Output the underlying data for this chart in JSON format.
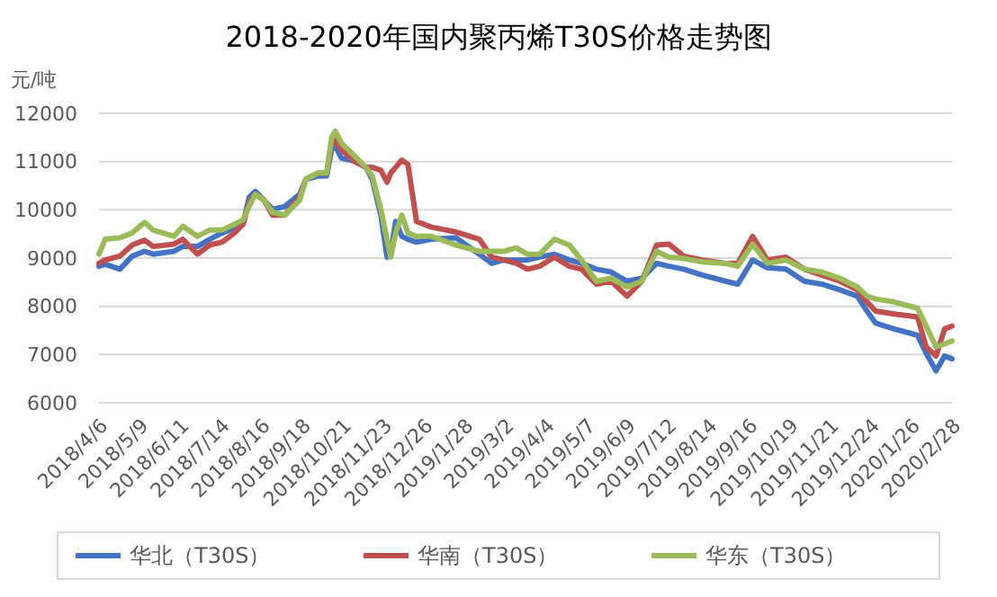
{
  "chart_data": {
    "type": "line",
    "title": "2018-2020年国内聚丙烯T30S价格走势图",
    "ylabel": "元/吨",
    "x": [
      "2018-04-06",
      "2018-04-11",
      "2018-04-23",
      "2018-05-03",
      "2018-05-13",
      "2018-05-20",
      "2018-06-06",
      "2018-06-13",
      "2018-06-25",
      "2018-07-05",
      "2018-07-15",
      "2018-07-25",
      "2018-08-01",
      "2018-08-06",
      "2018-08-11",
      "2018-08-18",
      "2018-08-25",
      "2018-09-04",
      "2018-09-16",
      "2018-09-21",
      "2018-10-01",
      "2018-10-08",
      "2018-10-12",
      "2018-10-15",
      "2018-10-20",
      "2018-10-30",
      "2018-11-09",
      "2018-11-14",
      "2018-11-21",
      "2018-11-26",
      "2018-11-29",
      "2018-12-03",
      "2018-12-08",
      "2018-12-13",
      "2018-12-20",
      "2019-01-01",
      "2019-01-21",
      "2019-02-09",
      "2019-02-19",
      "2019-03-01",
      "2019-03-11",
      "2019-03-20",
      "2019-03-30",
      "2019-04-11",
      "2019-04-23",
      "2019-05-03",
      "2019-05-15",
      "2019-05-27",
      "2019-06-09",
      "2019-06-21",
      "2019-07-03",
      "2019-07-13",
      "2019-07-25",
      "2019-08-09",
      "2019-08-28",
      "2019-09-07",
      "2019-09-19",
      "2019-10-01",
      "2019-10-16",
      "2019-10-31",
      "2019-11-14",
      "2019-11-29",
      "2019-12-13",
      "2019-12-21",
      "2019-12-28",
      "2020-01-12",
      "2020-01-31",
      "2020-02-07",
      "2020-02-15",
      "2020-02-22",
      "2020-02-28"
    ],
    "series": [
      {
        "name": "华北（T30S）",
        "color": "#4472c4",
        "values": [
          8830,
          8870,
          8770,
          9040,
          9140,
          9080,
          9140,
          9240,
          9240,
          9390,
          9520,
          9620,
          9700,
          10260,
          10380,
          10200,
          10010,
          10070,
          10320,
          10630,
          10700,
          10700,
          11250,
          11320,
          11070,
          11010,
          10880,
          10630,
          9890,
          9020,
          9080,
          9760,
          9450,
          9390,
          9330,
          9390,
          9420,
          9080,
          8890,
          8960,
          8960,
          8960,
          9020,
          9080,
          8960,
          8890,
          8770,
          8710,
          8520,
          8580,
          8890,
          8830,
          8770,
          8650,
          8520,
          8460,
          8960,
          8800,
          8770,
          8520,
          8460,
          8340,
          8210,
          7900,
          7650,
          7530,
          7400,
          7030,
          6660,
          6970,
          6910
        ]
      },
      {
        "name": "华南（T30S）",
        "color": "#c0504d",
        "values": [
          8890,
          8960,
          9040,
          9270,
          9370,
          9240,
          9290,
          9390,
          9080,
          9270,
          9330,
          9520,
          9700,
          10140,
          10320,
          10200,
          9890,
          9890,
          10260,
          10630,
          10760,
          10760,
          11380,
          11440,
          11250,
          11010,
          10880,
          10880,
          10820,
          10570,
          10760,
          10880,
          11030,
          10940,
          9760,
          9640,
          9540,
          9390,
          9020,
          8960,
          8890,
          8770,
          8830,
          9020,
          8830,
          8770,
          8460,
          8520,
          8210,
          8520,
          9270,
          9290,
          9040,
          8960,
          8890,
          8890,
          9450,
          8960,
          9020,
          8770,
          8650,
          8520,
          8340,
          8090,
          7900,
          7840,
          7780,
          7160,
          6970,
          7530,
          7590
        ]
      },
      {
        "name": "华东（T30S）",
        "color": "#9bbb59",
        "values": [
          9080,
          9390,
          9420,
          9520,
          9740,
          9580,
          9450,
          9660,
          9450,
          9580,
          9580,
          9700,
          9790,
          10070,
          10320,
          10200,
          9950,
          9890,
          10200,
          10630,
          10760,
          10760,
          11500,
          11630,
          11380,
          11130,
          10880,
          10700,
          10010,
          9390,
          9020,
          9520,
          9890,
          9520,
          9450,
          9450,
          9270,
          9140,
          9140,
          9140,
          9210,
          9080,
          9080,
          9390,
          9270,
          8960,
          8520,
          8580,
          8400,
          8520,
          9140,
          9020,
          8990,
          8920,
          8890,
          8830,
          9290,
          8890,
          8960,
          8770,
          8710,
          8580,
          8400,
          8210,
          8150,
          8090,
          7960,
          7590,
          7160,
          7220,
          7280
        ]
      }
    ],
    "xlim": [
      "2018-04-06",
      "2020-02-28"
    ],
    "xticks": [
      {
        "value": "2018-04-06",
        "label": "2018/4/6"
      },
      {
        "value": "2018-05-09",
        "label": "2018/5/9"
      },
      {
        "value": "2018-06-11",
        "label": "2018/6/11"
      },
      {
        "value": "2018-07-14",
        "label": "2018/7/14"
      },
      {
        "value": "2018-08-16",
        "label": "2018/8/16"
      },
      {
        "value": "2018-09-18",
        "label": "2018/9/18"
      },
      {
        "value": "2018-10-21",
        "label": "2018/10/21"
      },
      {
        "value": "2018-11-23",
        "label": "2018/11/23"
      },
      {
        "value": "2018-12-26",
        "label": "2018/12/26"
      },
      {
        "value": "2019-01-28",
        "label": "2019/1/28"
      },
      {
        "value": "2019-03-02",
        "label": "2019/3/2"
      },
      {
        "value": "2019-04-04",
        "label": "2019/4/4"
      },
      {
        "value": "2019-05-07",
        "label": "2019/5/7"
      },
      {
        "value": "2019-06-09",
        "label": "2019/6/9"
      },
      {
        "value": "2019-07-12",
        "label": "2019/7/12"
      },
      {
        "value": "2019-08-14",
        "label": "2019/8/14"
      },
      {
        "value": "2019-09-16",
        "label": "2019/9/16"
      },
      {
        "value": "2019-10-19",
        "label": "2019/10/19"
      },
      {
        "value": "2019-11-21",
        "label": "2019/11/21"
      },
      {
        "value": "2019-12-24",
        "label": "2019/12/24"
      },
      {
        "value": "2020-01-26",
        "label": "2020/1/26"
      },
      {
        "value": "2020-02-28",
        "label": "2020/2/28"
      }
    ],
    "ylim": [
      6000,
      12000
    ],
    "yticks": [
      6000,
      7000,
      8000,
      9000,
      10000,
      11000,
      12000
    ],
    "grid": "y",
    "legend": "bottom",
    "marker": "none",
    "line_style": "solid"
  }
}
